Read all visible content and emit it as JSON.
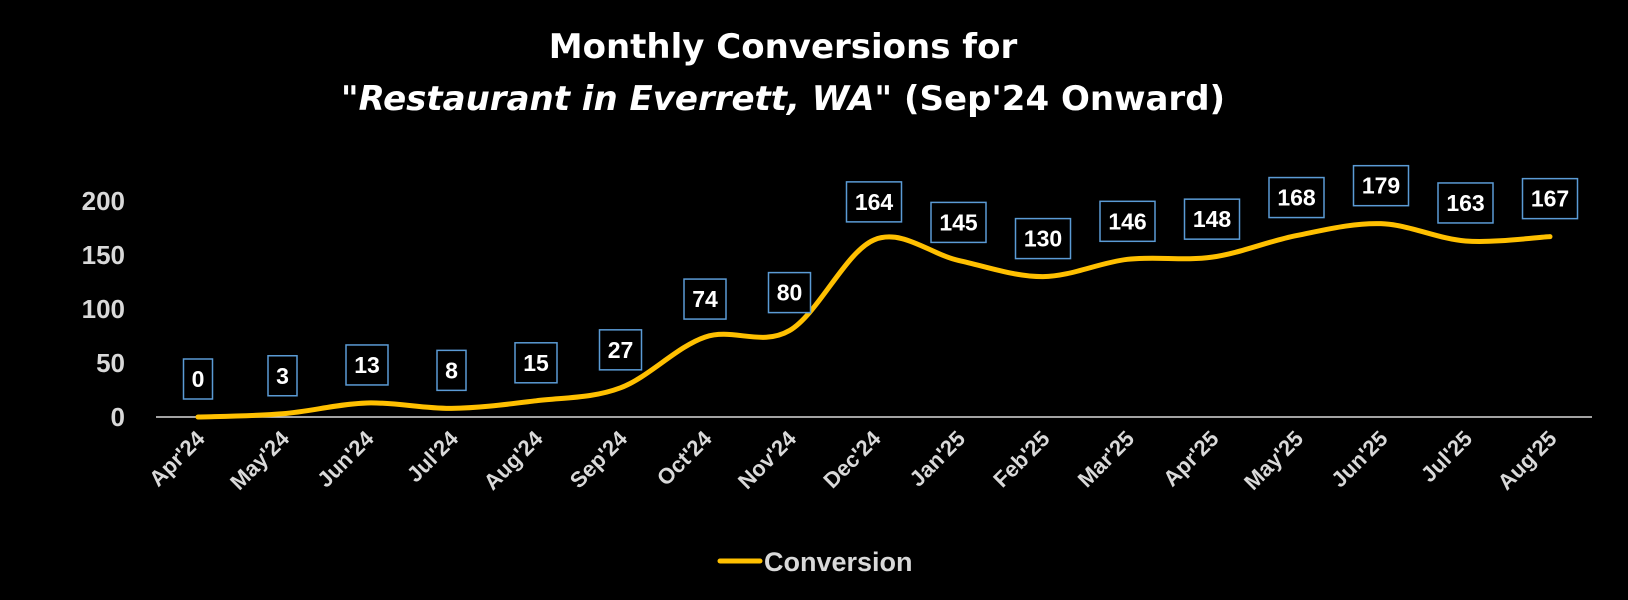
{
  "chart_data": {
    "type": "line",
    "title_line1": "Monthly Conversions for",
    "title_line2_italic": "\"Restaurant in Everrett, WA\"",
    "title_line2_normal": " (Sep'24 Onward)",
    "categories": [
      "Apr'24",
      "May'24",
      "Jun'24",
      "Jul'24",
      "Aug'24",
      "Sep'24",
      "Oct'24",
      "Nov'24",
      "Dec'24",
      "Jan'25",
      "Feb'25",
      "Mar'25",
      "Apr'25",
      "May'25",
      "Jun'25",
      "Jul'25",
      "Aug'25"
    ],
    "series": [
      {
        "name": "Conversion",
        "values": [
          0,
          3,
          13,
          8,
          15,
          27,
          74,
          80,
          164,
          145,
          130,
          146,
          148,
          168,
          179,
          163,
          167
        ],
        "color": "#ffc000"
      }
    ],
    "y_ticks": [
      0,
      50,
      100,
      150,
      200
    ],
    "ylim": [
      0,
      200
    ],
    "data_labels": true,
    "smooth": true,
    "legend_position": "bottom",
    "grid": false,
    "colors": {
      "background": "#000000",
      "text": "#ffffff",
      "axis_text": "#d9d9d9",
      "label_border": "#5b9bd5",
      "axis_line": "#d9d9d9"
    }
  }
}
